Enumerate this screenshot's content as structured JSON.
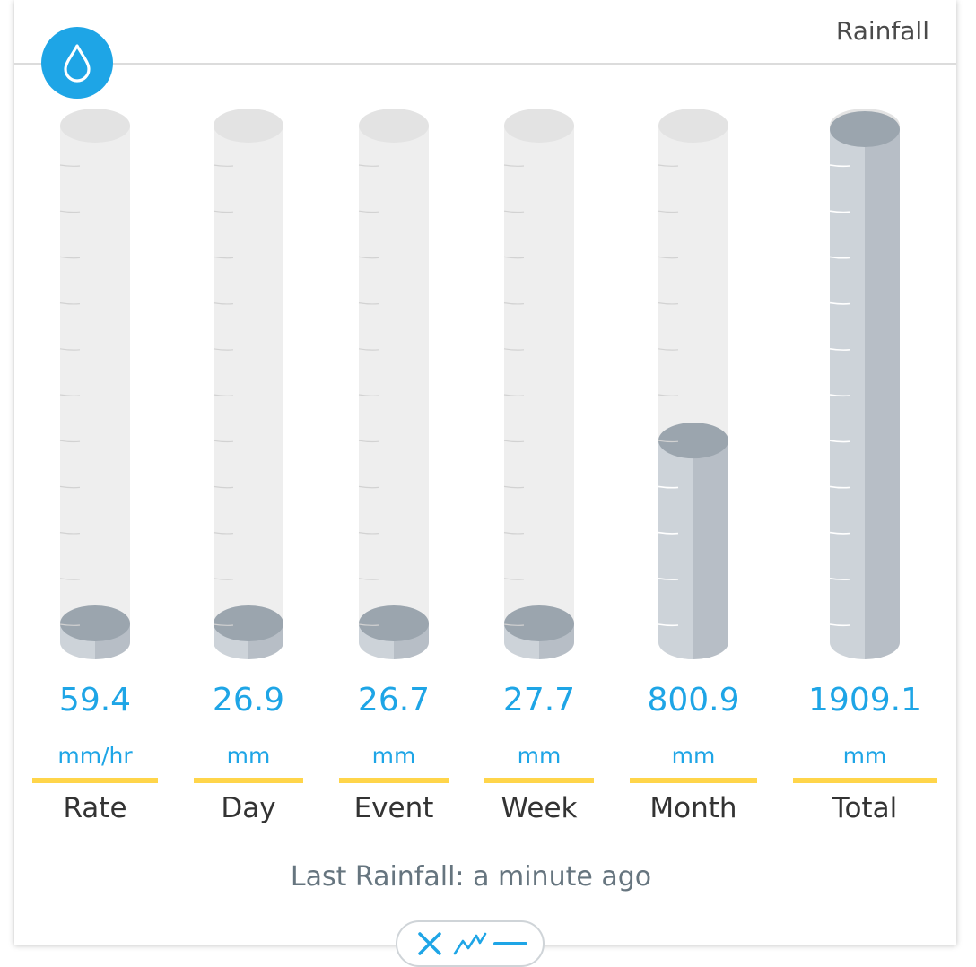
{
  "widget": {
    "title": "Rainfall",
    "icon": "water-drop-icon",
    "accent_color": "#1ea5e6",
    "underline_color": "#ffd54a"
  },
  "gauges": [
    {
      "key": "rate",
      "label": "Rate",
      "value": "59.4",
      "unit": "mm/hr",
      "fill_fraction": 0.0
    },
    {
      "key": "day",
      "label": "Day",
      "value": "26.9",
      "unit": "mm",
      "fill_fraction": 0.0
    },
    {
      "key": "event",
      "label": "Event",
      "value": "26.7",
      "unit": "mm",
      "fill_fraction": 0.0
    },
    {
      "key": "week",
      "label": "Week",
      "value": "27.7",
      "unit": "mm",
      "fill_fraction": 0.0
    },
    {
      "key": "month",
      "label": "Month",
      "value": "800.9",
      "unit": "mm",
      "fill_fraction": 0.37
    },
    {
      "key": "total",
      "label": "Total",
      "value": "1909.1",
      "unit": "mm",
      "fill_fraction": 1.0
    }
  ],
  "last_rainfall": {
    "label": "Last Rainfall:",
    "value": "a minute ago"
  },
  "toolbar": {
    "close_icon": "close-icon",
    "chart_icon": "line-chart-icon",
    "minimize_icon": "minimize-icon"
  }
}
